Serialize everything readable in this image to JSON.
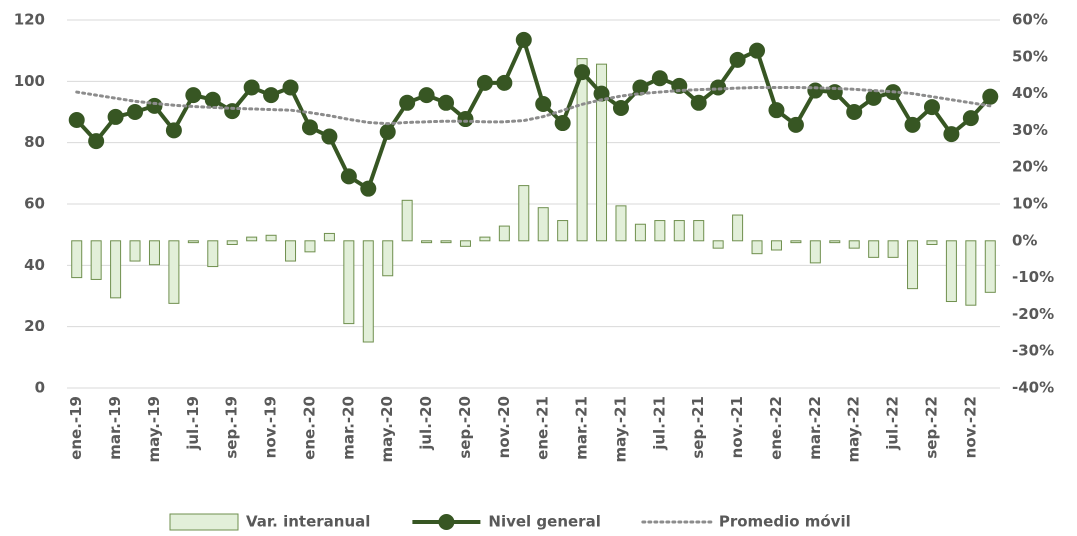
{
  "chart_data": {
    "type": "combo",
    "categories": [
      "ene.-19",
      null,
      "mar.-19",
      null,
      "may.-19",
      null,
      "jul.-19",
      null,
      "sep.-19",
      null,
      "nov.-19",
      null,
      "ene.-20",
      null,
      "mar.-20",
      null,
      "may.-20",
      null,
      "jul.-20",
      null,
      "sep.-20",
      null,
      "nov.-20",
      null,
      "ene.-21",
      null,
      "mar.-21",
      null,
      "may.-21",
      null,
      "jul.-21",
      null,
      "sep.-21",
      null,
      "nov.-21",
      null,
      "ene.-22",
      null,
      "mar.-22",
      null,
      "may.-22",
      null,
      "jul.-22",
      null,
      "sep.-22",
      null,
      "nov.-22",
      null
    ],
    "series": [
      {
        "name": "Var. interanual",
        "type": "bar",
        "axis": "y2",
        "color": "#e2efd9",
        "edge": "#6f8f4e",
        "values": [
          -10,
          -10.5,
          -15.5,
          -5.5,
          -6.5,
          -17,
          -0.5,
          -7,
          -1,
          1,
          1.5,
          -5.5,
          -3,
          2,
          -22.5,
          -27.5,
          -9.5,
          11,
          -0.5,
          -0.5,
          -1.5,
          1,
          4,
          15,
          9,
          5.5,
          49.5,
          48,
          9.5,
          4.5,
          5.5,
          5.5,
          5.5,
          -2,
          7,
          -3.5,
          -2.5,
          -0.5,
          -6,
          -0.5,
          -2,
          -4.5,
          -4.5,
          -13,
          -1,
          -16.5,
          -17.5,
          -14
        ]
      },
      {
        "name": "Nivel general",
        "type": "line",
        "axis": "y",
        "color": "#375623",
        "marker": true,
        "values": [
          87.4,
          80.5,
          88.4,
          90,
          92,
          84,
          95.5,
          94,
          90.3,
          98,
          95.5,
          98,
          85,
          82,
          69,
          65,
          83.5,
          93,
          95.5,
          93,
          87.7,
          99.5,
          99.5,
          113.5,
          92.6,
          86.4,
          103,
          96,
          91.3,
          98,
          101,
          98.5,
          93,
          98,
          107,
          110,
          90.6,
          85.8,
          97,
          96.5,
          90,
          94.6,
          96.5,
          85.8,
          91.6,
          82.8,
          88,
          95
        ]
      },
      {
        "name": "Promedio móvil",
        "type": "line",
        "axis": "y",
        "color": "#8c8c8c",
        "dash": "dotted",
        "values": [
          96.5,
          95.5,
          94.5,
          93.5,
          92.8,
          92.2,
          91.8,
          91.5,
          91.2,
          91,
          90.8,
          90.6,
          89.8,
          88.8,
          87.6,
          86.6,
          86.2,
          86.6,
          86.8,
          87,
          87,
          86.8,
          86.8,
          87.2,
          88.5,
          90.5,
          92.5,
          94,
          95.2,
          96,
          96.5,
          97,
          97.3,
          97.5,
          97.8,
          98,
          98,
          98,
          97.9,
          97.7,
          97.4,
          97,
          96.6,
          96,
          95,
          94,
          93,
          92
        ]
      }
    ],
    "ylim": [
      0,
      120
    ],
    "yticks": [
      0,
      20,
      40,
      60,
      80,
      100,
      120
    ],
    "y2lim": [
      -40,
      60
    ],
    "y2ticks": [
      {
        "value": -40,
        "label": "-40%"
      },
      {
        "value": -30,
        "label": "-30%"
      },
      {
        "value": -20,
        "label": "-20%"
      },
      {
        "value": -10,
        "label": "-10%"
      },
      {
        "value": 0,
        "label": "0%"
      },
      {
        "value": 10,
        "label": "10%"
      },
      {
        "value": 20,
        "label": "20%"
      },
      {
        "value": 30,
        "label": "30%"
      },
      {
        "value": 40,
        "label": "40%"
      },
      {
        "value": 50,
        "label": "50%"
      },
      {
        "value": 60,
        "label": "60%"
      }
    ],
    "grid": true,
    "legend": "bottom"
  }
}
